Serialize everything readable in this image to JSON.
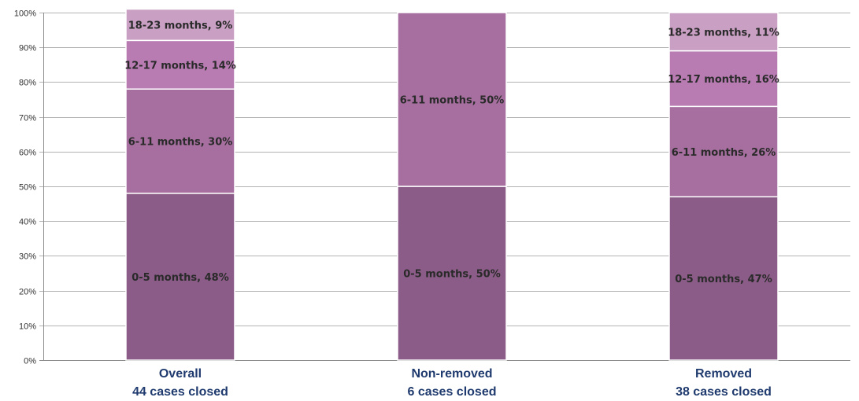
{
  "chart_data": {
    "type": "bar",
    "stacked": true,
    "percent_stacked": true,
    "ylim": [
      0,
      100
    ],
    "yticks": [
      "0%",
      "10%",
      "20%",
      "30%",
      "40%",
      "50%",
      "60%",
      "70%",
      "80%",
      "90%",
      "100%"
    ],
    "grid": true,
    "categories": [
      {
        "line1": "Overall",
        "line2": "44 cases closed"
      },
      {
        "line1": "Non-removed",
        "line2": "6 cases closed"
      },
      {
        "line1": "Removed",
        "line2": "38 cases closed"
      }
    ],
    "series": [
      {
        "name": "0-5 months",
        "color": "#8a5c87",
        "values": [
          48,
          50,
          47
        ],
        "labels": [
          "0-5 months, 48%",
          "0-5 months, 50%",
          "0-5 months, 47%"
        ]
      },
      {
        "name": "6-11 months",
        "color": "#a66f9f",
        "values": [
          30,
          50,
          26
        ],
        "labels": [
          "6-11 months, 30%",
          "6-11 months, 50%",
          "6-11 months, 26%"
        ]
      },
      {
        "name": "12-17 months",
        "color": "#b87cb3",
        "values": [
          14,
          0,
          16
        ],
        "labels": [
          "12-17 months, 14%",
          "",
          "12-17 months, 16%"
        ]
      },
      {
        "name": "18-23 months",
        "color": "#c9a0c4",
        "values": [
          9,
          0,
          11
        ],
        "labels": [
          "18-23 months, 9%",
          "",
          "18-23 months, 11%"
        ]
      }
    ]
  }
}
